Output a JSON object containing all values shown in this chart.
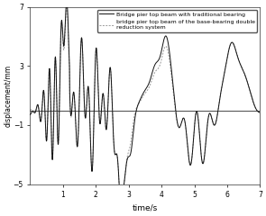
{
  "title": "",
  "xlabel": "time/s",
  "ylabel": "displacement/mm",
  "xlim": [
    0,
    7
  ],
  "ylim": [
    -5,
    7
  ],
  "yticks": [
    -5,
    -1,
    3,
    7
  ],
  "xticks": [
    1,
    2,
    3,
    4,
    5,
    6,
    7
  ],
  "legend1": "Bridge pier top beam with traditional bearing",
  "legend2": "bridge pier top beam of the base-bearing double\nreduction system",
  "line1_color": "#111111",
  "line2_color": "#999999",
  "line1_lw": 0.7,
  "line2_lw": 0.7,
  "background": "#ffffff"
}
